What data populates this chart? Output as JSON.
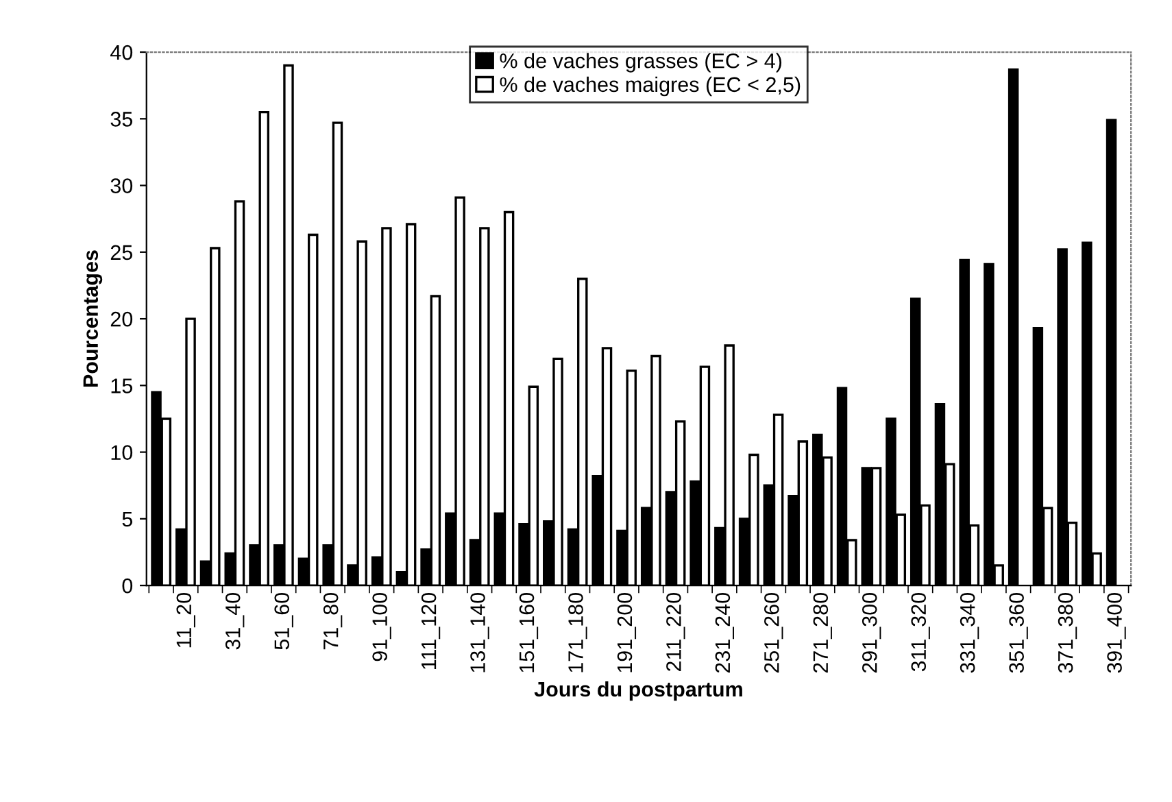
{
  "chart_data": {
    "type": "bar",
    "xlabel": "Jours du postpartum",
    "ylabel": "Pourcentages",
    "categories": [
      null,
      "11_20",
      null,
      "31_40",
      null,
      "51_60",
      null,
      "71_80",
      null,
      "91_100",
      null,
      "111_120",
      null,
      "131_140",
      null,
      "151_160",
      null,
      "171_180",
      null,
      "191_200",
      null,
      "211_220",
      null,
      "231_240",
      null,
      "251_260",
      null,
      "271_280",
      null,
      "291_300",
      null,
      "311_320",
      null,
      "331_340",
      null,
      "351_360",
      null,
      "371_380",
      null,
      "391_400"
    ],
    "series": [
      {
        "name": "% de vaches grasses (EC > 4)",
        "color": "#000000",
        "values": [
          14.5,
          4.2,
          1.8,
          2.4,
          3.0,
          3.0,
          2.0,
          3.0,
          1.5,
          2.1,
          1.0,
          2.7,
          5.4,
          3.4,
          5.4,
          4.6,
          4.8,
          4.2,
          8.2,
          4.1,
          5.8,
          7.0,
          7.8,
          4.3,
          5.0,
          7.5,
          6.7,
          11.3,
          14.8,
          8.8,
          12.5,
          21.5,
          13.6,
          24.4,
          24.1,
          38.7,
          19.3,
          25.2,
          25.7,
          34.9
        ]
      },
      {
        "name": "% de vaches maigres (EC < 2,5)",
        "color": "#ffffff",
        "values": [
          12.5,
          20.0,
          25.3,
          28.8,
          35.5,
          39.0,
          26.3,
          34.7,
          25.8,
          26.8,
          27.1,
          21.7,
          29.1,
          26.8,
          28.0,
          14.9,
          17.0,
          23.0,
          17.8,
          16.1,
          17.2,
          12.3,
          16.4,
          18.0,
          9.8,
          12.8,
          10.8,
          9.6,
          3.4,
          8.8,
          5.3,
          6.0,
          9.1,
          4.5,
          1.5,
          null,
          5.8,
          4.7,
          2.4,
          null
        ]
      }
    ],
    "ylim": [
      0,
      40
    ],
    "yticks": [
      0,
      5,
      10,
      15,
      20,
      25,
      30,
      35,
      40
    ],
    "grid": false,
    "legend": "top"
  }
}
